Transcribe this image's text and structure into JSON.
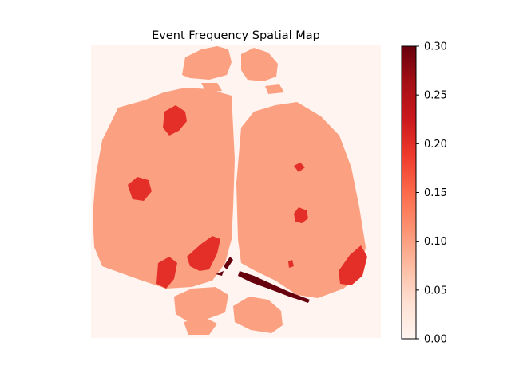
{
  "chart_data": {
    "type": "heatmap",
    "title": "Event Frequency Spatial Map",
    "xlabel": "",
    "ylabel": "",
    "colormap": "Reds",
    "colorbar": {
      "vmin": 0.0,
      "vmax": 0.3,
      "ticks": [
        "0.00",
        "0.05",
        "0.10",
        "0.15",
        "0.20",
        "0.25",
        "0.30"
      ],
      "tick_values": [
        0.0,
        0.05,
        0.1,
        0.15,
        0.2,
        0.25,
        0.3
      ]
    },
    "background_value": 0.0,
    "regions": [
      {
        "name": "left-hemisphere",
        "value": 0.1
      },
      {
        "name": "right-hemisphere",
        "value": 0.1
      },
      {
        "name": "olfactory-bulb-left",
        "value": 0.1
      },
      {
        "name": "olfactory-bulb-right",
        "value": 0.1
      },
      {
        "name": "cerebellum-fragments",
        "value": 0.1
      },
      {
        "name": "hotspot-frontal-left",
        "value": 0.18
      },
      {
        "name": "hotspot-lateral-left",
        "value": 0.17
      },
      {
        "name": "hotspot-posterior-left",
        "value": 0.18
      },
      {
        "name": "hotspot-posterior-left-2",
        "value": 0.18
      },
      {
        "name": "hotspot-right-small",
        "value": 0.18
      },
      {
        "name": "hotspot-right-center",
        "value": 0.18
      },
      {
        "name": "hotspot-right-posterior",
        "value": 0.18
      },
      {
        "name": "midline-streak",
        "value": 0.3
      }
    ],
    "colors": {
      "background": "#fff4ef",
      "tissue": "#fca082",
      "hotspot": "#e32f27",
      "max": "#67000d"
    }
  }
}
